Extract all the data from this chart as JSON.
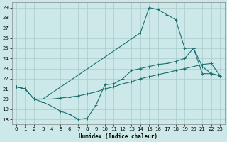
{
  "xlabel": "Humidex (Indice chaleur)",
  "bg_color": "#cce8e8",
  "grid_color": "#aacccc",
  "line_color": "#1a7070",
  "xlim": [
    -0.5,
    23.5
  ],
  "ylim": [
    17.5,
    29.5
  ],
  "xticks": [
    0,
    1,
    2,
    3,
    4,
    5,
    6,
    7,
    8,
    9,
    10,
    11,
    12,
    13,
    14,
    15,
    16,
    17,
    18,
    19,
    20,
    21,
    22,
    23
  ],
  "yticks": [
    18,
    19,
    20,
    21,
    22,
    23,
    24,
    25,
    26,
    27,
    28,
    29
  ],
  "line1_x": [
    0,
    1,
    2,
    3,
    4,
    5,
    6,
    7,
    8,
    9,
    10,
    11,
    12,
    13,
    14,
    15,
    16,
    17,
    18,
    19,
    20,
    21,
    22,
    23
  ],
  "line1_y": [
    21.2,
    21.0,
    20.0,
    19.7,
    19.3,
    18.8,
    18.5,
    18.0,
    18.1,
    19.4,
    21.4,
    21.5,
    22.0,
    22.8,
    23.0,
    23.2,
    23.4,
    23.5,
    23.7,
    24.0,
    25.0,
    23.2,
    22.5,
    22.3
  ],
  "line2_x": [
    0,
    1,
    2,
    3,
    4,
    5,
    6,
    7,
    8,
    9,
    10,
    11,
    12,
    13,
    14,
    15,
    16,
    17,
    18,
    19,
    20,
    21,
    22,
    23
  ],
  "line2_y": [
    21.2,
    21.0,
    20.0,
    20.0,
    20.0,
    20.1,
    20.2,
    20.3,
    20.5,
    20.7,
    21.0,
    21.2,
    21.5,
    21.7,
    22.0,
    22.2,
    22.4,
    22.6,
    22.8,
    23.0,
    23.2,
    23.4,
    23.5,
    22.3
  ],
  "line3_x": [
    0,
    1,
    2,
    3,
    14,
    15,
    16,
    17,
    18,
    19,
    20,
    21,
    22,
    23
  ],
  "line3_y": [
    21.2,
    21.0,
    20.0,
    20.0,
    26.5,
    29.0,
    28.8,
    28.3,
    27.8,
    25.0,
    25.0,
    22.5,
    22.5,
    22.3
  ]
}
